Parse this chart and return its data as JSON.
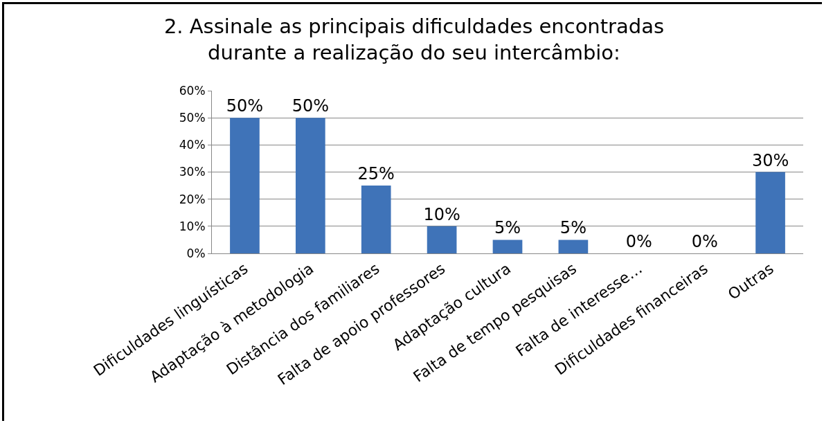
{
  "chart_data": {
    "type": "bar",
    "title": "2. Assinale as principais dificuldades encontradas\ndurante a realização do seu intercâmbio:",
    "categories": [
      "Dificuldades linguísticas",
      "Adaptação à metodologia",
      "Distância dos familiares",
      "Falta de apoio professores",
      "Adaptação cultura",
      "Falta de tempo pesquisas",
      "Falta de interesse…",
      "Dificuldades financeiras",
      "Outras"
    ],
    "values": [
      50,
      50,
      25,
      10,
      5,
      5,
      0,
      0,
      30
    ],
    "value_labels": [
      "50%",
      "50%",
      "25%",
      "10%",
      "5%",
      "5%",
      "0%",
      "0%",
      "30%"
    ],
    "color": "#3f73b8",
    "ylim": [
      0,
      60
    ],
    "yticks": [
      {
        "value": 0,
        "label": "0%"
      },
      {
        "value": 10,
        "label": "10%"
      },
      {
        "value": 20,
        "label": "20%"
      },
      {
        "value": 30,
        "label": "30%"
      },
      {
        "value": 40,
        "label": "40%"
      },
      {
        "value": 50,
        "label": "50%"
      },
      {
        "value": 60,
        "label": "60%"
      }
    ],
    "grid": "y"
  }
}
